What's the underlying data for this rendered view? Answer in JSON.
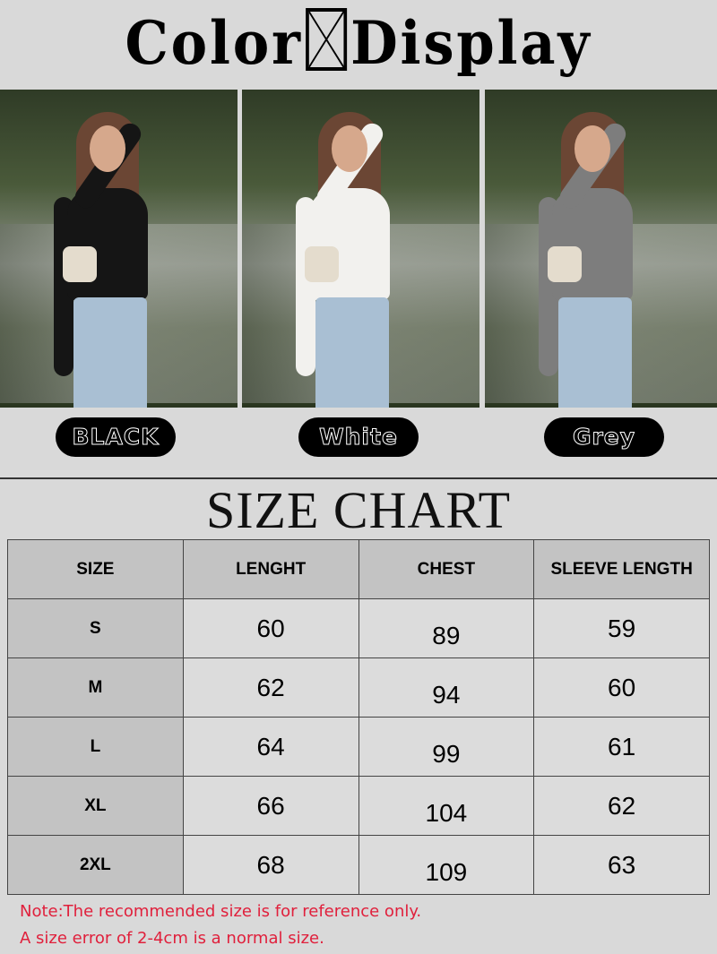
{
  "header": {
    "title_left": "Color",
    "title_right": "Display",
    "separator_icon": "boxed-x-icon"
  },
  "colors": [
    {
      "label": "BLACK",
      "shirt": "#151515"
    },
    {
      "label": "White",
      "shirt": "#f2f1ee"
    },
    {
      "label": "Grey",
      "shirt": "#7d7d7d"
    }
  ],
  "size_chart": {
    "title": "SIZE CHART",
    "columns": [
      "SIZE",
      "LENGHT",
      "CHEST",
      "SLEEVE LENGTH"
    ],
    "rows": [
      [
        "S",
        "60",
        "89",
        "59"
      ],
      [
        "M",
        "62",
        "94",
        "60"
      ],
      [
        "L",
        "64",
        "99",
        "61"
      ],
      [
        "XL",
        "66",
        "104",
        "62"
      ],
      [
        "2XL",
        "68",
        "109",
        "63"
      ]
    ]
  },
  "notes": [
    "Note:The recommended size is for reference only.",
    "A size error of 2-4cm is a normal size."
  ],
  "accent": {
    "note_color": "#e0203c",
    "background": "#d9d9d9"
  }
}
